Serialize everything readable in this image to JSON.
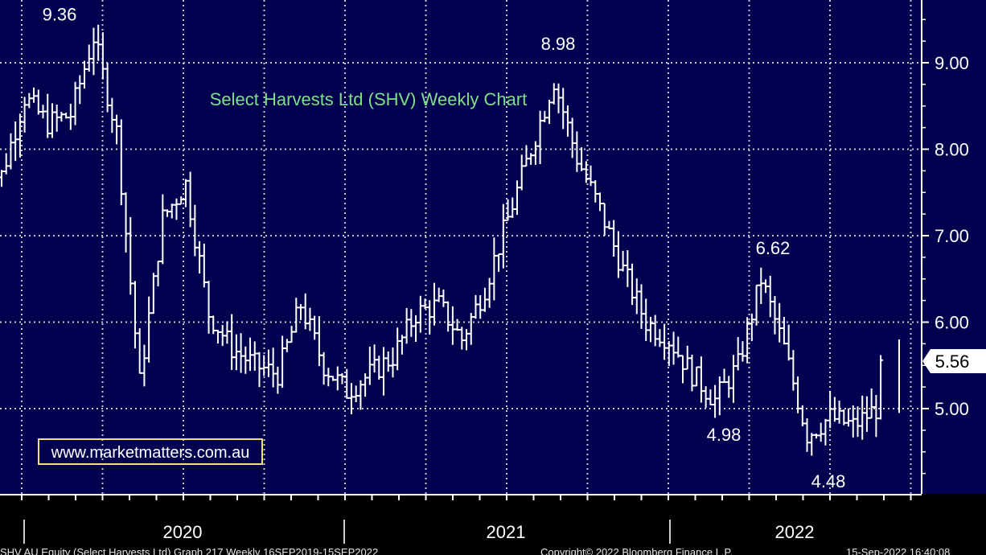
{
  "chart_data": {
    "type": "ohlc",
    "title": "Select Harvests Ltd (SHV) Weekly Chart",
    "watermark": "www.marketmatters.com.au",
    "x_axis_labels": [
      "2020",
      "2021",
      "2022"
    ],
    "y_axis": {
      "ticks": [
        "5.00",
        "6.00",
        "7.00",
        "8.00",
        "9.00"
      ],
      "ylim": [
        4.0,
        9.7
      ]
    },
    "last_price": "5.56",
    "annotations": [
      {
        "label": "9.36",
        "value": 9.36
      },
      {
        "label": "8.98",
        "value": 8.98
      },
      {
        "label": "6.62",
        "value": 6.62
      },
      {
        "label": "4.98",
        "value": 4.98
      },
      {
        "label": "4.48",
        "value": 4.48
      }
    ],
    "series": [
      {
        "x": [
          "2019-09-16",
          "2019-10-14",
          "2019-11-11",
          "2019-12-09",
          "2020-01-06",
          "2020-02-03",
          "2020-03-02",
          "2020-03-30",
          "2020-04-27",
          "2020-05-25",
          "2020-06-22",
          "2020-07-20",
          "2020-08-17",
          "2020-09-14",
          "2020-10-12",
          "2020-11-09",
          "2020-12-07",
          "2021-01-04",
          "2021-02-01",
          "2021-03-01",
          "2021-03-29",
          "2021-04-26",
          "2021-05-24",
          "2021-06-21",
          "2021-07-19",
          "2021-08-16",
          "2021-09-13",
          "2021-10-11",
          "2021-11-08",
          "2021-12-06",
          "2022-01-03",
          "2022-01-31",
          "2022-02-28",
          "2022-03-28",
          "2022-04-25",
          "2022-05-23",
          "2022-06-20",
          "2022-07-18",
          "2022-08-15",
          "2022-09-12"
        ],
        "close": [
          7.7,
          8.6,
          8.3,
          8.4,
          9.3,
          8.2,
          5.3,
          7.2,
          7.6,
          6.1,
          5.7,
          5.5,
          5.4,
          6.2,
          5.5,
          5.2,
          5.4,
          5.6,
          6.1,
          6.2,
          5.8,
          6.4,
          7.2,
          8.0,
          8.8,
          7.9,
          7.3,
          6.6,
          6.0,
          5.8,
          5.4,
          5.1,
          5.5,
          6.5,
          5.7,
          4.7,
          4.9,
          4.8,
          5.0,
          5.56
        ]
      }
    ]
  },
  "footer": {
    "left": "SHV AU Equity (Select Harvests Ltd) Graph 217  Weekly 16SEP2019-15SEP2022",
    "center": "Copyright© 2022 Bloomberg Finance L.P.",
    "right": "15-Sep-2022 16:40:08"
  },
  "colors": {
    "background": "#010153",
    "plot_background": "#00004f",
    "bars": "#ffffff",
    "title": "#7fe08a",
    "grid": "#c8c8c8",
    "watermark_border": "#f2e07a",
    "last_price_bg": "#ffffff",
    "last_price_text": "#000000"
  }
}
